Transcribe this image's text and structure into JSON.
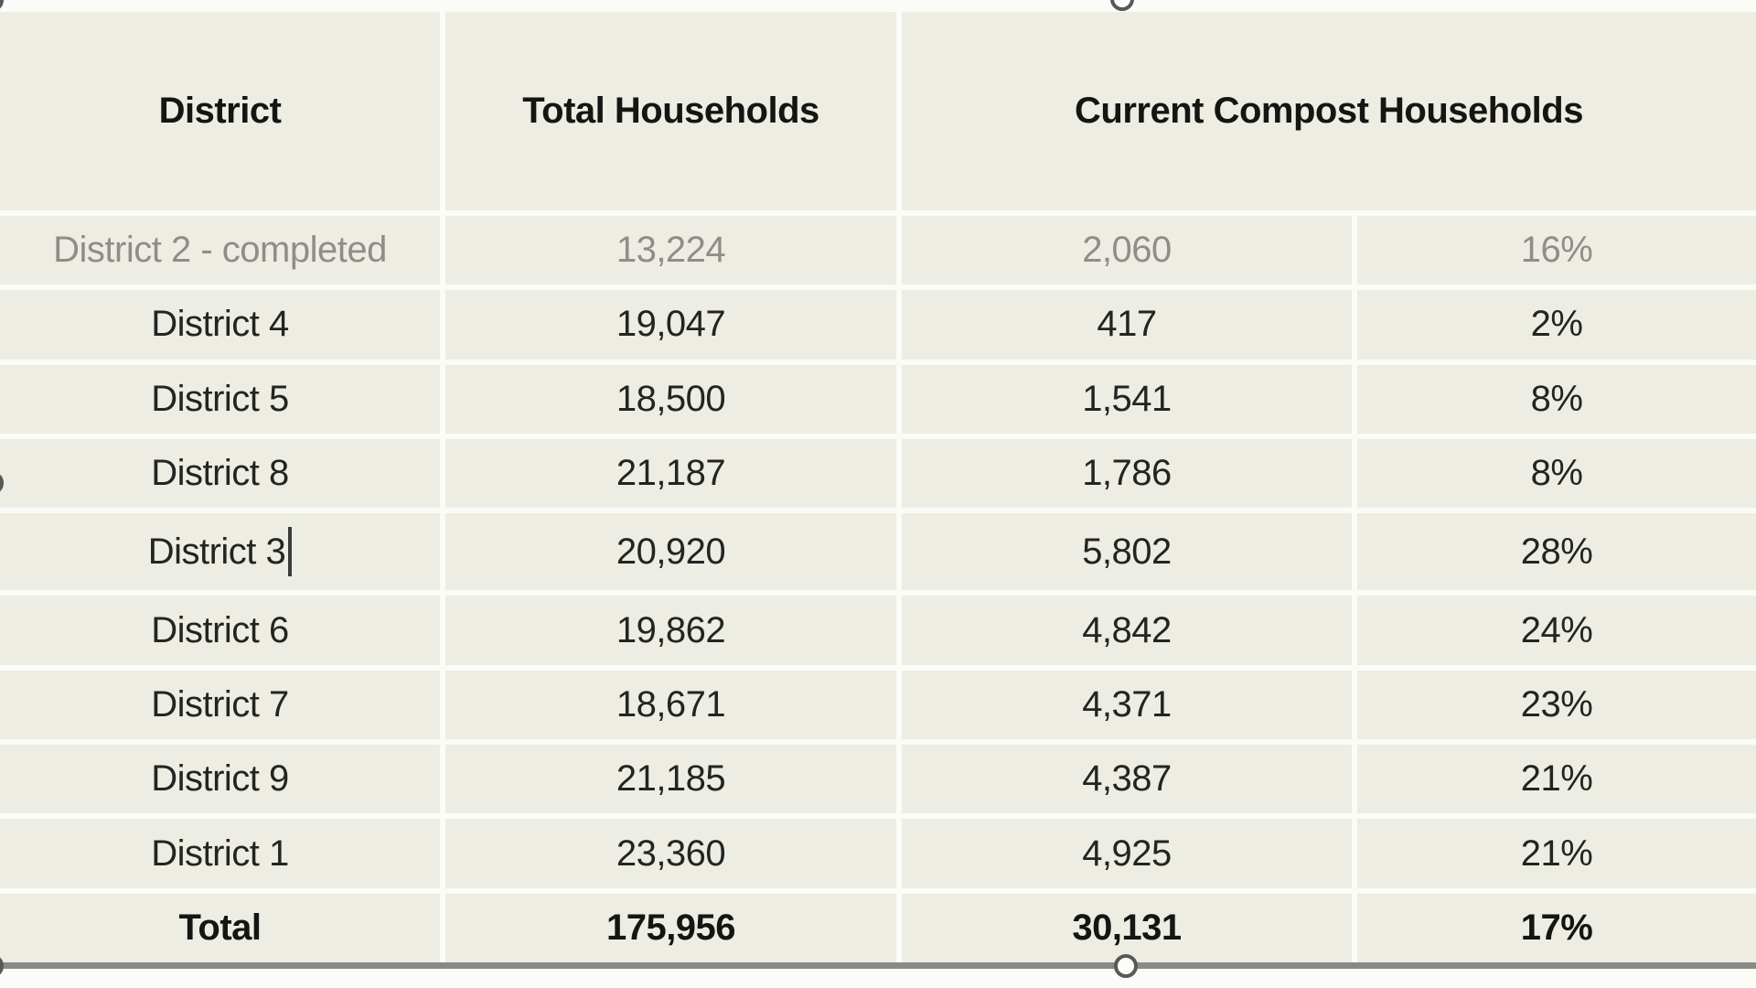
{
  "table": {
    "header": {
      "district": "District",
      "total_households": "Total Households",
      "current_compost_households": "Current Compost Households"
    },
    "rows": [
      {
        "district": "District 2 - completed",
        "total": "13,224",
        "compost": "2,060",
        "pct": "16%",
        "muted": true,
        "bold": false,
        "caret": false
      },
      {
        "district": "District 4",
        "total": "19,047",
        "compost": "417",
        "pct": "2%",
        "muted": false,
        "bold": false,
        "caret": false
      },
      {
        "district": "District 5",
        "total": "18,500",
        "compost": "1,541",
        "pct": "8%",
        "muted": false,
        "bold": false,
        "caret": false
      },
      {
        "district": "District 8",
        "total": "21,187",
        "compost": "1,786",
        "pct": "8%",
        "muted": false,
        "bold": false,
        "caret": false
      },
      {
        "district": "District 3",
        "total": "20,920",
        "compost": "5,802",
        "pct": "28%",
        "muted": false,
        "bold": false,
        "caret": true
      },
      {
        "district": "District 6",
        "total": "19,862",
        "compost": "4,842",
        "pct": "24%",
        "muted": false,
        "bold": false,
        "caret": false
      },
      {
        "district": "District 7",
        "total": "18,671",
        "compost": "4,371",
        "pct": "23%",
        "muted": false,
        "bold": false,
        "caret": false
      },
      {
        "district": "District 9",
        "total": "21,185",
        "compost": "4,387",
        "pct": "21%",
        "muted": false,
        "bold": false,
        "caret": false
      },
      {
        "district": "District 1",
        "total": "23,360",
        "compost": "4,925",
        "pct": "21%",
        "muted": false,
        "bold": false,
        "caret": false
      }
    ],
    "total_row": {
      "district": "Total",
      "total": "175,956",
      "compost": "30,131",
      "pct": "17%"
    }
  },
  "colors": {
    "cell_background": "#eeede4",
    "separator": "#fbfbf7",
    "bottom_border": "#8a8a85",
    "muted_text": "#8e8d88",
    "text": "#242422"
  }
}
